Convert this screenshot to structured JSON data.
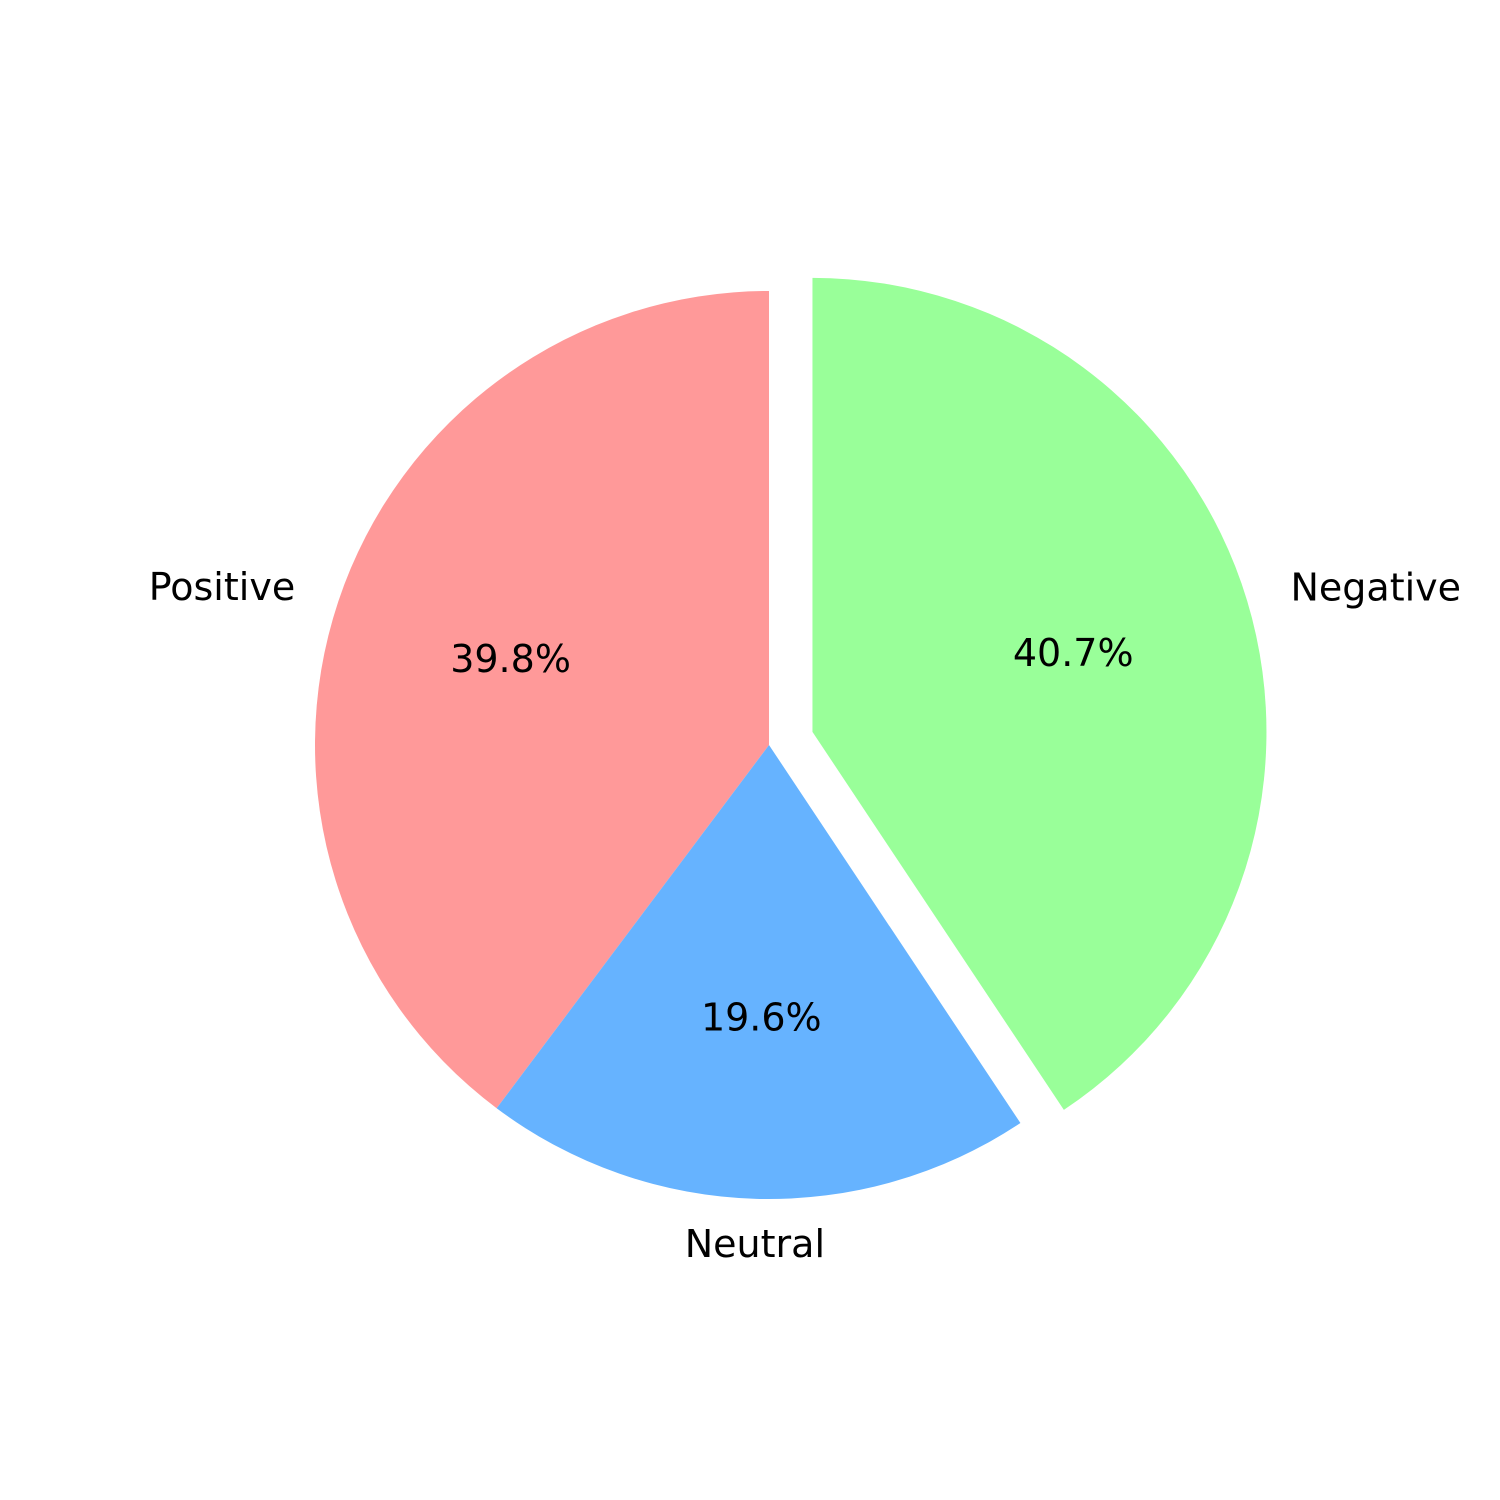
{
  "chart_data": {
    "type": "pie",
    "categories": [
      "Positive",
      "Neutral",
      "Negative"
    ],
    "values": [
      39.8,
      19.6,
      40.7
    ],
    "value_labels": [
      "39.8%",
      "19.6%",
      "40.7%"
    ],
    "colors": [
      "#ff9999",
      "#66b3ff",
      "#99ff99"
    ],
    "exploded": [
      false,
      false,
      true
    ],
    "start_angle_deg": 90,
    "direction": "counterclockwise"
  }
}
